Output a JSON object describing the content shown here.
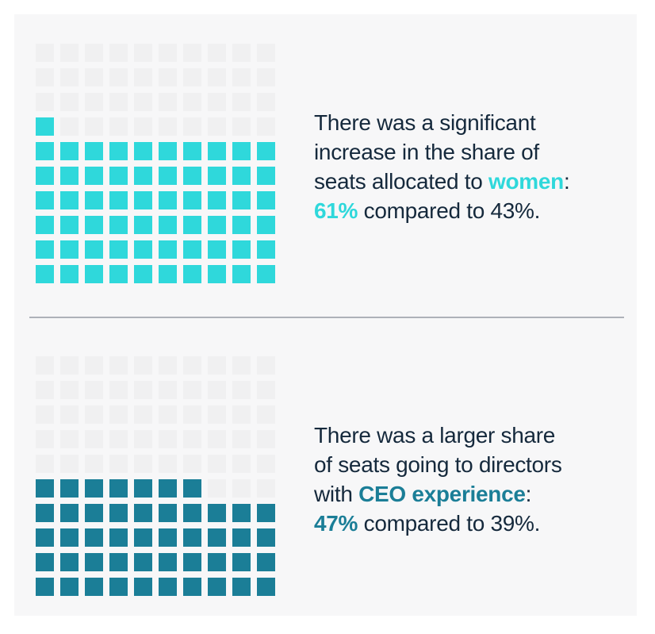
{
  "page": {
    "background_color": "#ffffff",
    "panel_background_color": "#f7f7f8",
    "divider_color": "#aeb1b9",
    "text_color": "#15293c"
  },
  "chart_data": [
    {
      "type": "waffle",
      "rows": 10,
      "cols": 10,
      "total_cells": 100,
      "filled_cells": 61,
      "fill_from": "bottom-left",
      "fill_color": "#2fd8db",
      "empty_color": "#f0f0f1",
      "accent_color": "#2fd8db",
      "highlight_label": "women",
      "value_pct": "61%",
      "compared_pct": "43%",
      "caption_text": "There was a significant increase in the share of seats allocated to women: 61% compared to 43%.",
      "caption_lines": [
        [
          {
            "t": "There was a significant",
            "s": "body"
          }
        ],
        [
          {
            "t": "increase in the share of",
            "s": "body"
          }
        ],
        [
          {
            "t": "seats allocated to ",
            "s": "body"
          },
          {
            "t": "women",
            "s": "accent"
          },
          {
            "t": ":",
            "s": "body"
          }
        ],
        [
          {
            "t": "61%",
            "s": "accent"
          },
          {
            "t": " compared to 43%.",
            "s": "body"
          }
        ]
      ]
    },
    {
      "type": "waffle",
      "rows": 10,
      "cols": 10,
      "total_cells": 100,
      "filled_cells": 47,
      "fill_from": "bottom-left",
      "fill_color": "#1b7e97",
      "empty_color": "#f0f0f1",
      "accent_color": "#1b7e97",
      "highlight_label": "CEO experience",
      "value_pct": "47%",
      "compared_pct": "39%",
      "caption_text": "There was a larger share of seats going to directors with CEO experience: 47% compared to 39%.",
      "caption_lines": [
        [
          {
            "t": "There was a larger share",
            "s": "body"
          }
        ],
        [
          {
            "t": "of seats going to directors",
            "s": "body"
          }
        ],
        [
          {
            "t": "with ",
            "s": "body"
          },
          {
            "t": "CEO experience",
            "s": "accent"
          },
          {
            "t": ":",
            "s": "body"
          }
        ],
        [
          {
            "t": "47%",
            "s": "accent"
          },
          {
            "t": " compared to 39%.",
            "s": "body"
          }
        ]
      ]
    }
  ]
}
